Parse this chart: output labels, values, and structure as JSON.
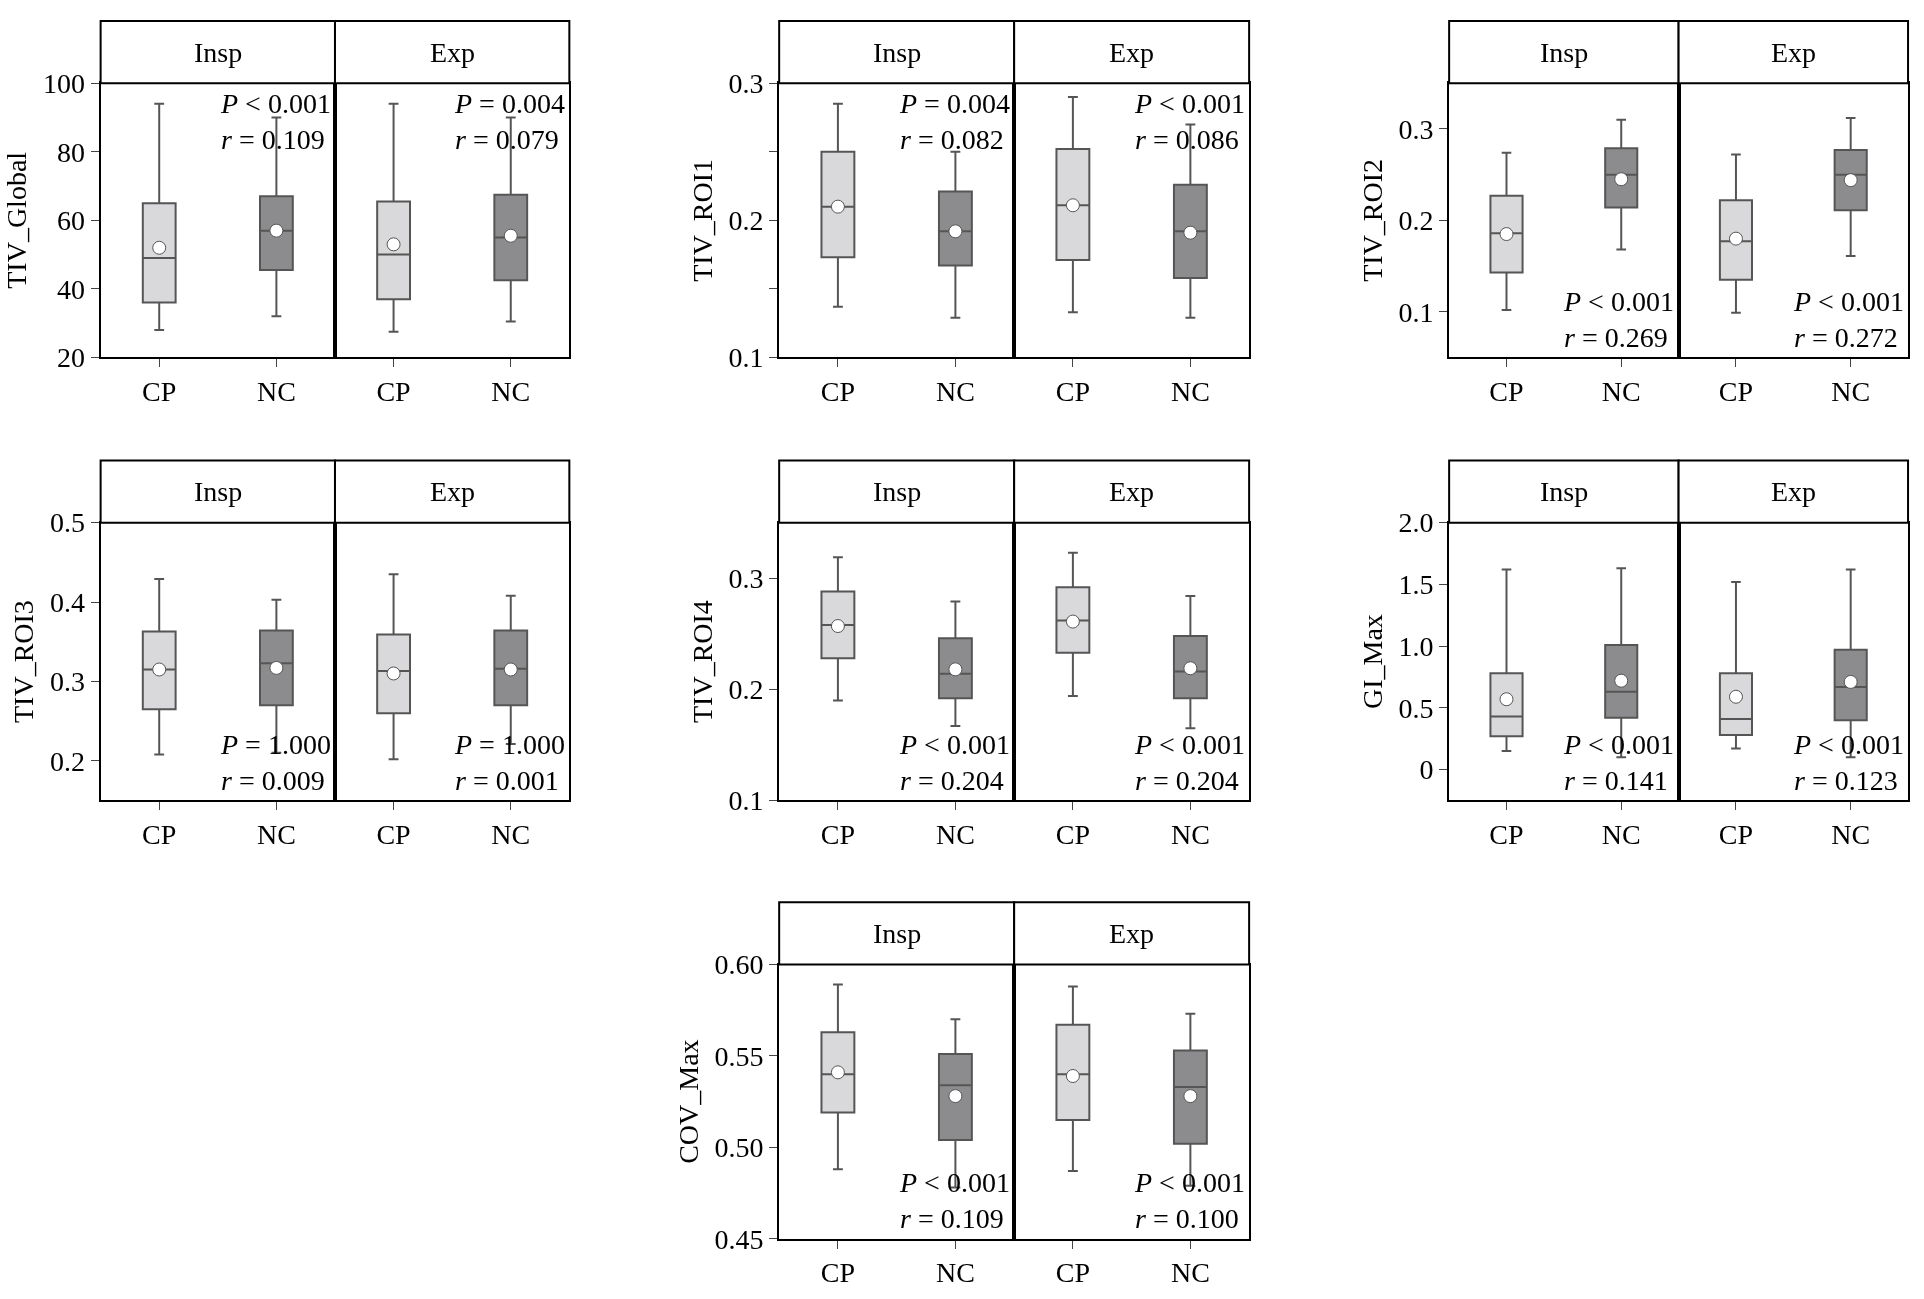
{
  "chart_data": [
    {
      "type": "box",
      "title": "Insp",
      "ylabel": "TIV_Global",
      "categories": [
        "CP",
        "NC"
      ],
      "colors": [
        "#d9d9db",
        "#8c8c8e"
      ],
      "ylim": [
        20,
        100
      ],
      "yticks": [
        20,
        40,
        60,
        80,
        100
      ],
      "annotations": [
        "P < 0.001",
        "r = 0.109"
      ],
      "grid": false,
      "boxes": [
        {
          "low": 28,
          "q1": 36,
          "median": 49,
          "q3": 65,
          "high": 94,
          "mean": 52
        },
        {
          "low": 32,
          "q1": 45.5,
          "median": 57,
          "q3": 67,
          "high": 90,
          "mean": 57
        }
      ]
    },
    {
      "type": "box",
      "title": "Exp",
      "categories": [
        "CP",
        "NC"
      ],
      "colors": [
        "#d9d9db",
        "#8c8c8e"
      ],
      "ylim": [
        20,
        100
      ],
      "yticks": [
        20,
        40,
        60,
        80,
        100
      ],
      "tick_labels": "x",
      "annotations": [
        "P = 0.004",
        "r = 0.079"
      ],
      "grid": false,
      "boxes": [
        {
          "low": 27.5,
          "q1": 37,
          "median": 50,
          "q3": 65.5,
          "high": 94,
          "mean": 53
        },
        {
          "low": 30.5,
          "q1": 42.5,
          "median": 55,
          "q3": 67.5,
          "high": 90,
          "mean": 55.5
        }
      ]
    },
    {
      "type": "box",
      "title": "Insp",
      "ylabel": "TIV_ROI1",
      "categories": [
        "CP",
        "NC"
      ],
      "colors": [
        "#d9d9db",
        "#8c8c8e"
      ],
      "ylim": [
        0.1,
        0.3
      ],
      "yticks": [
        0.1,
        {
          "value": 0.15,
          "label": null
        },
        0.2,
        {
          "value": 0.25,
          "label": null
        },
        0.3
      ],
      "annotations": [
        "P = 0.004",
        "r = 0.082"
      ],
      "grid": false,
      "boxes": [
        {
          "low": 0.137,
          "q1": 0.173,
          "median": 0.21,
          "q3": 0.25,
          "high": 0.285,
          "mean": 0.21
        },
        {
          "low": 0.129,
          "q1": 0.167,
          "median": 0.192,
          "q3": 0.221,
          "high": 0.25,
          "mean": 0.192
        }
      ]
    },
    {
      "type": "box",
      "title": "Exp",
      "categories": [
        "CP",
        "NC"
      ],
      "colors": [
        "#d9d9db",
        "#8c8c8e"
      ],
      "ylim": [
        0.1,
        0.3
      ],
      "yticks": [
        0.1,
        0.2,
        0.3
      ],
      "tick_labels": "x",
      "annotations": [
        "P < 0.001",
        "r = 0.086"
      ],
      "grid": false,
      "boxes": [
        {
          "low": 0.133,
          "q1": 0.171,
          "median": 0.211,
          "q3": 0.252,
          "high": 0.29,
          "mean": 0.211
        },
        {
          "low": 0.129,
          "q1": 0.158,
          "median": 0.192,
          "q3": 0.226,
          "high": 0.27,
          "mean": 0.191
        }
      ]
    },
    {
      "type": "box",
      "title": "Insp",
      "ylabel": "TIV_ROI2",
      "categories": [
        "CP",
        "NC"
      ],
      "colors": [
        "#d9d9db",
        "#8c8c8e"
      ],
      "ylim": [
        0.05,
        0.35
      ],
      "yticks": [
        0.1,
        0.2,
        0.3
      ],
      "annotations": [
        "P < 0.001",
        "r = 0.269"
      ],
      "grid": false,
      "boxes": [
        {
          "low": 0.102,
          "q1": 0.143,
          "median": 0.186,
          "q3": 0.227,
          "high": 0.274,
          "mean": 0.185
        },
        {
          "low": 0.168,
          "q1": 0.214,
          "median": 0.25,
          "q3": 0.279,
          "high": 0.31,
          "mean": 0.245
        }
      ]
    },
    {
      "type": "box",
      "title": "Exp",
      "categories": [
        "CP",
        "NC"
      ],
      "colors": [
        "#d9d9db",
        "#8c8c8e"
      ],
      "ylim": [
        0.05,
        0.35
      ],
      "yticks": [
        0.1,
        0.2,
        0.3
      ],
      "tick_labels": "x",
      "annotations": [
        "P < 0.001",
        "r = 0.272"
      ],
      "grid": false,
      "boxes": [
        {
          "low": 0.099,
          "q1": 0.135,
          "median": 0.177,
          "q3": 0.222,
          "high": 0.272,
          "mean": 0.18
        },
        {
          "low": 0.161,
          "q1": 0.211,
          "median": 0.25,
          "q3": 0.277,
          "high": 0.312,
          "mean": 0.244
        }
      ]
    },
    {
      "type": "box",
      "title": "Insp",
      "ylabel": "TIV_ROI3",
      "categories": [
        "CP",
        "NC"
      ],
      "colors": [
        "#d9d9db",
        "#8c8c8e"
      ],
      "ylim": [
        0.15,
        0.5
      ],
      "yticks": [
        0.2,
        0.3,
        0.4,
        0.5
      ],
      "annotations": [
        "P = 1.000",
        "r = 0.009"
      ],
      "grid": false,
      "boxes": [
        {
          "low": 0.208,
          "q1": 0.265,
          "median": 0.315,
          "q3": 0.363,
          "high": 0.429,
          "mean": 0.315
        },
        {
          "low": 0.21,
          "q1": 0.27,
          "median": 0.323,
          "q3": 0.364,
          "high": 0.403,
          "mean": 0.317
        }
      ]
    },
    {
      "type": "box",
      "title": "Exp",
      "categories": [
        "CP",
        "NC"
      ],
      "colors": [
        "#d9d9db",
        "#8c8c8e"
      ],
      "ylim": [
        0.15,
        0.5
      ],
      "yticks": [
        0.2,
        0.3,
        0.4,
        0.5
      ],
      "tick_labels": "x",
      "annotations": [
        "P = 1.000",
        "r = 0.001"
      ],
      "grid": false,
      "boxes": [
        {
          "low": 0.202,
          "q1": 0.26,
          "median": 0.313,
          "q3": 0.359,
          "high": 0.435,
          "mean": 0.31
        },
        {
          "low": 0.221,
          "q1": 0.27,
          "median": 0.316,
          "q3": 0.364,
          "high": 0.408,
          "mean": 0.315
        }
      ]
    },
    {
      "type": "box",
      "title": "Insp",
      "ylabel": "TIV_ROI4",
      "categories": [
        "CP",
        "NC"
      ],
      "colors": [
        "#d9d9db",
        "#8c8c8e"
      ],
      "ylim": [
        0.1,
        0.35
      ],
      "yticks": [
        0.1,
        0.2,
        0.3
      ],
      "annotations": [
        "P < 0.001",
        "r = 0.204"
      ],
      "grid": false,
      "boxes": [
        {
          "low": 0.19,
          "q1": 0.228,
          "median": 0.258,
          "q3": 0.288,
          "high": 0.319,
          "mean": 0.257
        },
        {
          "low": 0.167,
          "q1": 0.192,
          "median": 0.214,
          "q3": 0.246,
          "high": 0.279,
          "mean": 0.218
        }
      ]
    },
    {
      "type": "box",
      "title": "Exp",
      "categories": [
        "CP",
        "NC"
      ],
      "colors": [
        "#d9d9db",
        "#8c8c8e"
      ],
      "ylim": [
        0.1,
        0.35
      ],
      "yticks": [
        0.1,
        0.2,
        0.3
      ],
      "tick_labels": "x",
      "annotations": [
        "P < 0.001",
        "r = 0.204"
      ],
      "grid": false,
      "boxes": [
        {
          "low": 0.194,
          "q1": 0.233,
          "median": 0.262,
          "q3": 0.292,
          "high": 0.323,
          "mean": 0.261
        },
        {
          "low": 0.165,
          "q1": 0.192,
          "median": 0.216,
          "q3": 0.248,
          "high": 0.284,
          "mean": 0.219
        }
      ]
    },
    {
      "type": "box",
      "title": "Insp",
      "ylabel": "GI_Max",
      "categories": [
        "CP",
        "NC"
      ],
      "colors": [
        "#d9d9db",
        "#8c8c8e"
      ],
      "ylim": [
        -0.25,
        2.0
      ],
      "yticks": [
        0,
        0.5,
        {
          "value": 1,
          "label": "1.0"
        },
        1.5,
        {
          "value": 2,
          "label": "2.0"
        }
      ],
      "annotations": [
        "P < 0.001",
        "r = 0.141"
      ],
      "grid": false,
      "boxes": [
        {
          "low": 0.15,
          "q1": 0.27,
          "median": 0.43,
          "q3": 0.78,
          "high": 1.62,
          "mean": 0.57
        },
        {
          "low": 0.1,
          "q1": 0.42,
          "median": 0.63,
          "q3": 1.01,
          "high": 1.63,
          "mean": 0.72
        }
      ]
    },
    {
      "type": "box",
      "title": "Exp",
      "categories": [
        "CP",
        "NC"
      ],
      "colors": [
        "#d9d9db",
        "#8c8c8e"
      ],
      "ylim": [
        -0.25,
        2.0
      ],
      "yticks": [
        0,
        0.5,
        1,
        1.5,
        2
      ],
      "tick_labels": "x",
      "annotations": [
        "P < 0.001",
        "r = 0.123"
      ],
      "grid": false,
      "boxes": [
        {
          "low": 0.17,
          "q1": 0.28,
          "median": 0.41,
          "q3": 0.78,
          "high": 1.52,
          "mean": 0.59
        },
        {
          "low": 0.1,
          "q1": 0.4,
          "median": 0.67,
          "q3": 0.97,
          "high": 1.62,
          "mean": 0.71
        }
      ]
    },
    {
      "type": "box",
      "title": "Insp",
      "ylabel": "COV_Max",
      "categories": [
        "CP",
        "NC"
      ],
      "colors": [
        "#d9d9db",
        "#8c8c8e"
      ],
      "ylim": [
        0.45,
        0.6
      ],
      "yticks": [
        0.45,
        {
          "value": 0.5,
          "label": "0.50"
        },
        0.55,
        {
          "value": 0.6,
          "label": "0.60"
        }
      ],
      "annotations": [
        "P < 0.001",
        "r = 0.109"
      ],
      "grid": false,
      "boxes": [
        {
          "low": 0.488,
          "q1": 0.519,
          "median": 0.54,
          "q3": 0.563,
          "high": 0.589,
          "mean": 0.541
        },
        {
          "low": 0.478,
          "q1": 0.504,
          "median": 0.534,
          "q3": 0.551,
          "high": 0.57,
          "mean": 0.528
        }
      ]
    },
    {
      "type": "box",
      "title": "Exp",
      "categories": [
        "CP",
        "NC"
      ],
      "colors": [
        "#d9d9db",
        "#8c8c8e"
      ],
      "ylim": [
        0.45,
        0.6
      ],
      "yticks": [
        0.45,
        0.5,
        0.55,
        0.6
      ],
      "tick_labels": "x",
      "annotations": [
        "P < 0.001",
        "r = 0.100"
      ],
      "grid": false,
      "boxes": [
        {
          "low": 0.487,
          "q1": 0.515,
          "median": 0.54,
          "q3": 0.567,
          "high": 0.588,
          "mean": 0.539
        },
        {
          "low": 0.479,
          "q1": 0.502,
          "median": 0.533,
          "q3": 0.553,
          "high": 0.573,
          "mean": 0.528
        }
      ]
    }
  ]
}
